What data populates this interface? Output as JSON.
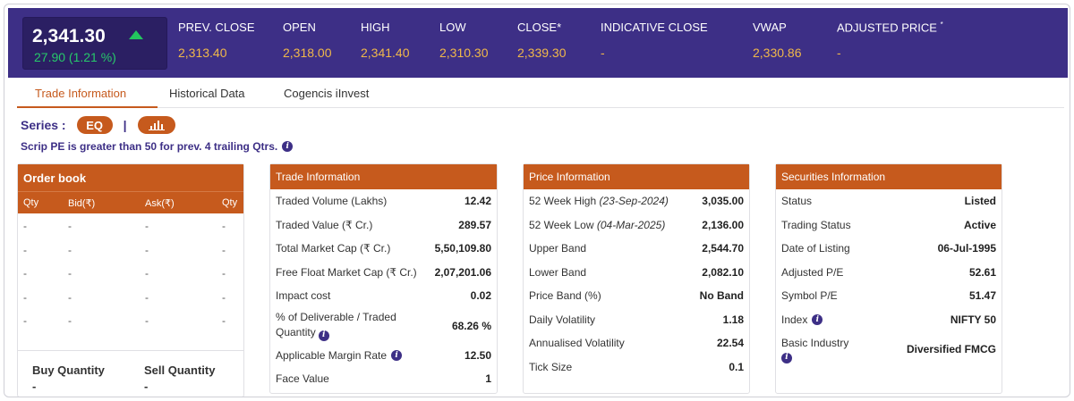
{
  "header": {
    "price": "2,341.30",
    "change": "27.90 (1.21 %)",
    "stats": [
      {
        "label": "PREV. CLOSE",
        "value": "2,313.40"
      },
      {
        "label": "OPEN",
        "value": "2,318.00"
      },
      {
        "label": "HIGH",
        "value": "2,341.40"
      },
      {
        "label": "LOW",
        "value": "2,310.30"
      },
      {
        "label": "CLOSE*",
        "value": "2,339.30"
      },
      {
        "label": "INDICATIVE CLOSE",
        "value": "-"
      },
      {
        "label": "VWAP",
        "value": "2,330.86"
      },
      {
        "label": "ADJUSTED PRICE",
        "sup": "*",
        "value": "-"
      }
    ],
    "colors": {
      "bar": "#3d2f86",
      "value": "#f0b84a",
      "up": "#27c96a"
    }
  },
  "tabs": [
    {
      "label": "Trade Information",
      "active": true
    },
    {
      "label": "Historical Data",
      "active": false
    },
    {
      "label": "Cogencis iInvest",
      "active": false
    }
  ],
  "series": {
    "label": "Series :",
    "eq": "EQ",
    "separator": "|",
    "chart_icon": "bar-chart-icon"
  },
  "note": "Scrip PE is greater than 50 for prev. 4 trailing Qtrs.",
  "order_book": {
    "title": "Order book",
    "columns": [
      "Qty",
      "Bid(₹)",
      "Ask(₹)",
      "Qty"
    ],
    "rows": [
      [
        "-",
        "-",
        "-",
        "-"
      ],
      [
        "-",
        "-",
        "-",
        "-"
      ],
      [
        "-",
        "-",
        "-",
        "-"
      ],
      [
        "-",
        "-",
        "-",
        "-"
      ],
      [
        "-",
        "-",
        "-",
        "-"
      ]
    ],
    "buy_label": "Buy Quantity",
    "buy_value": "-",
    "sell_label": "Sell Quantity",
    "sell_value": "-"
  },
  "trade_info": {
    "title": "Trade Information",
    "rows": [
      {
        "k": "Traded Volume (Lakhs)",
        "v": "12.42"
      },
      {
        "k": "Traded Value (₹ Cr.)",
        "v": "289.57"
      },
      {
        "k": "Total Market Cap (₹ Cr.)",
        "v": "5,50,109.80"
      },
      {
        "k": "Free Float Market Cap (₹ Cr.)",
        "v": "2,07,201.06"
      },
      {
        "k": "Impact cost",
        "v": "0.02"
      },
      {
        "k": "% of Deliverable / Traded Quantity",
        "v": "68.26 %"
      },
      {
        "k": "Applicable Margin Rate",
        "v": "12.50"
      },
      {
        "k": "Face Value",
        "v": "1"
      }
    ]
  },
  "price_info": {
    "title": "Price Information",
    "rows": [
      {
        "k": "52 Week High",
        "d": "(23-Sep-2024)",
        "v": "3,035.00"
      },
      {
        "k": "52 Week Low",
        "d": "(04-Mar-2025)",
        "v": "2,136.00"
      },
      {
        "k": "Upper Band",
        "v": "2,544.70"
      },
      {
        "k": "Lower Band",
        "v": "2,082.10"
      },
      {
        "k": "Price Band (%)",
        "v": "No Band"
      },
      {
        "k": "Daily Volatility",
        "v": "1.18"
      },
      {
        "k": "Annualised Volatility",
        "v": "22.54"
      },
      {
        "k": "Tick Size",
        "v": "0.1"
      }
    ]
  },
  "securities_info": {
    "title": "Securities Information",
    "rows": [
      {
        "k": "Status",
        "v": "Listed"
      },
      {
        "k": "Trading Status",
        "v": "Active"
      },
      {
        "k": "Date of Listing",
        "v": "06-Jul-1995"
      },
      {
        "k": "Adjusted P/E",
        "v": "52.61"
      },
      {
        "k": "Symbol P/E",
        "v": "51.47"
      },
      {
        "k": "Index",
        "v": "NIFTY 50"
      },
      {
        "k": "Basic Industry",
        "v": "Diversified FMCG"
      }
    ]
  }
}
